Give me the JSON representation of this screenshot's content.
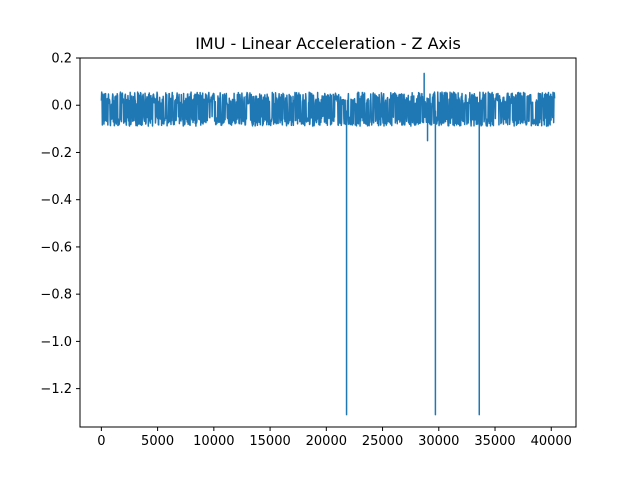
{
  "chart_data": {
    "type": "line",
    "title": "IMU - Linear Acceleration - Z Axis",
    "xlabel": "",
    "ylabel": "",
    "xlim": [
      -1900,
      42200
    ],
    "ylim": [
      -1.3625,
      0.2
    ],
    "x_ticks": [
      0,
      5000,
      10000,
      15000,
      20000,
      25000,
      30000,
      35000,
      40000
    ],
    "x_tick_labels": [
      "0",
      "5000",
      "10000",
      "15000",
      "20000",
      "25000",
      "30000",
      "35000",
      "40000"
    ],
    "y_ticks": [
      0.2,
      0.0,
      -0.2,
      -0.4,
      -0.6,
      -0.8,
      -1.0,
      -1.2
    ],
    "y_tick_labels": [
      "0.2",
      "0.0",
      "−0.2",
      "−0.4",
      "−0.6",
      "−0.8",
      "−1.0",
      "−1.2"
    ],
    "grid": false,
    "legend": "none",
    "series": [
      {
        "color": "#1f77b4",
        "x_range": [
          0,
          40300
        ],
        "baseline": -0.025,
        "noise_band": [
          -0.1,
          0.07
        ],
        "events": [
          {
            "x": 21800,
            "y": -1.31,
            "kind": "spike-down"
          },
          {
            "x": 28700,
            "y": 0.135,
            "kind": "spike-up"
          },
          {
            "x": 29000,
            "y": -0.15,
            "kind": "spike-down"
          },
          {
            "x": 29700,
            "y": -1.31,
            "kind": "spike-down"
          },
          {
            "x": 33600,
            "y": -1.31,
            "kind": "spike-down"
          }
        ]
      }
    ]
  }
}
